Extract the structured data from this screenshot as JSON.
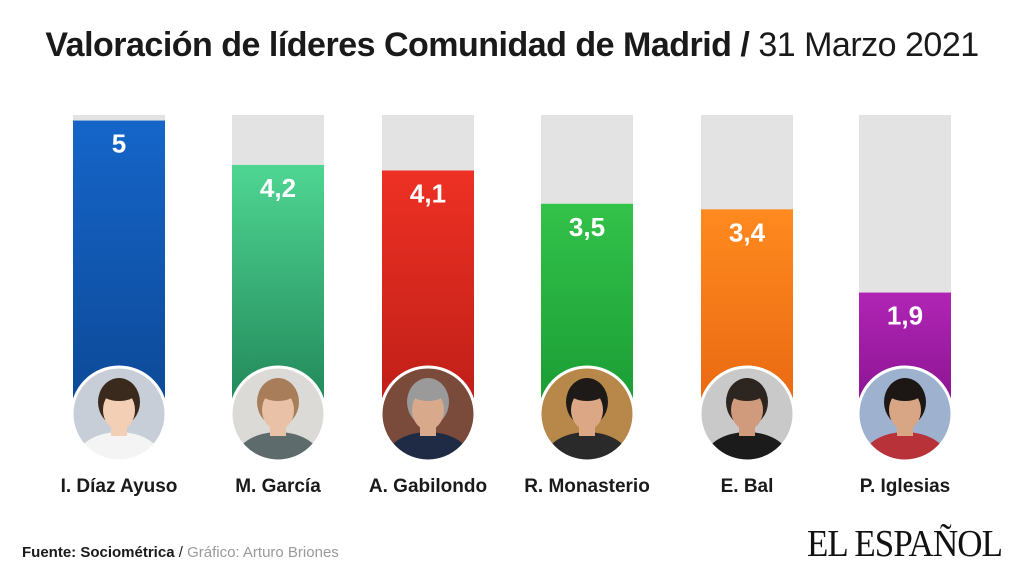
{
  "header": {
    "title": "Valoración de líderes Comunidad de Madrid",
    "separator": "/",
    "date": "31 Marzo 2021"
  },
  "chart_data": {
    "type": "bar",
    "title": "Valoración de líderes Comunidad de Madrid / 31 Marzo 2021",
    "categories": [
      "I. Díaz Ayuso",
      "M. García",
      "A. Gabilondo",
      "R. Monasterio",
      "E. Bal",
      "P. Iglesias"
    ],
    "values": [
      5,
      4.2,
      4.1,
      3.5,
      3.4,
      1.9
    ],
    "value_labels": [
      "5",
      "4,2",
      "4,1",
      "3,5",
      "3,4",
      "1,9"
    ],
    "colors": [
      [
        "#1565c9",
        "#0d4a99"
      ],
      [
        "#4fd693",
        "#238a5b"
      ],
      [
        "#ee3124",
        "#c01f18"
      ],
      [
        "#33c24a",
        "#1b9e35"
      ],
      [
        "#ff8a1f",
        "#ea6a12"
      ],
      [
        "#b025b5",
        "#8e1594"
      ]
    ],
    "track_color": "#e3e3e3",
    "ylim": [
      0,
      5.1
    ],
    "xlabel": "",
    "ylabel": "",
    "grid": false,
    "legend": "none"
  },
  "footer": {
    "source_label": "Fuente: Sociométrica",
    "separator": "/",
    "credit": "Gráfico: Arturo Briones",
    "logo": "EL ESPAÑOL"
  }
}
